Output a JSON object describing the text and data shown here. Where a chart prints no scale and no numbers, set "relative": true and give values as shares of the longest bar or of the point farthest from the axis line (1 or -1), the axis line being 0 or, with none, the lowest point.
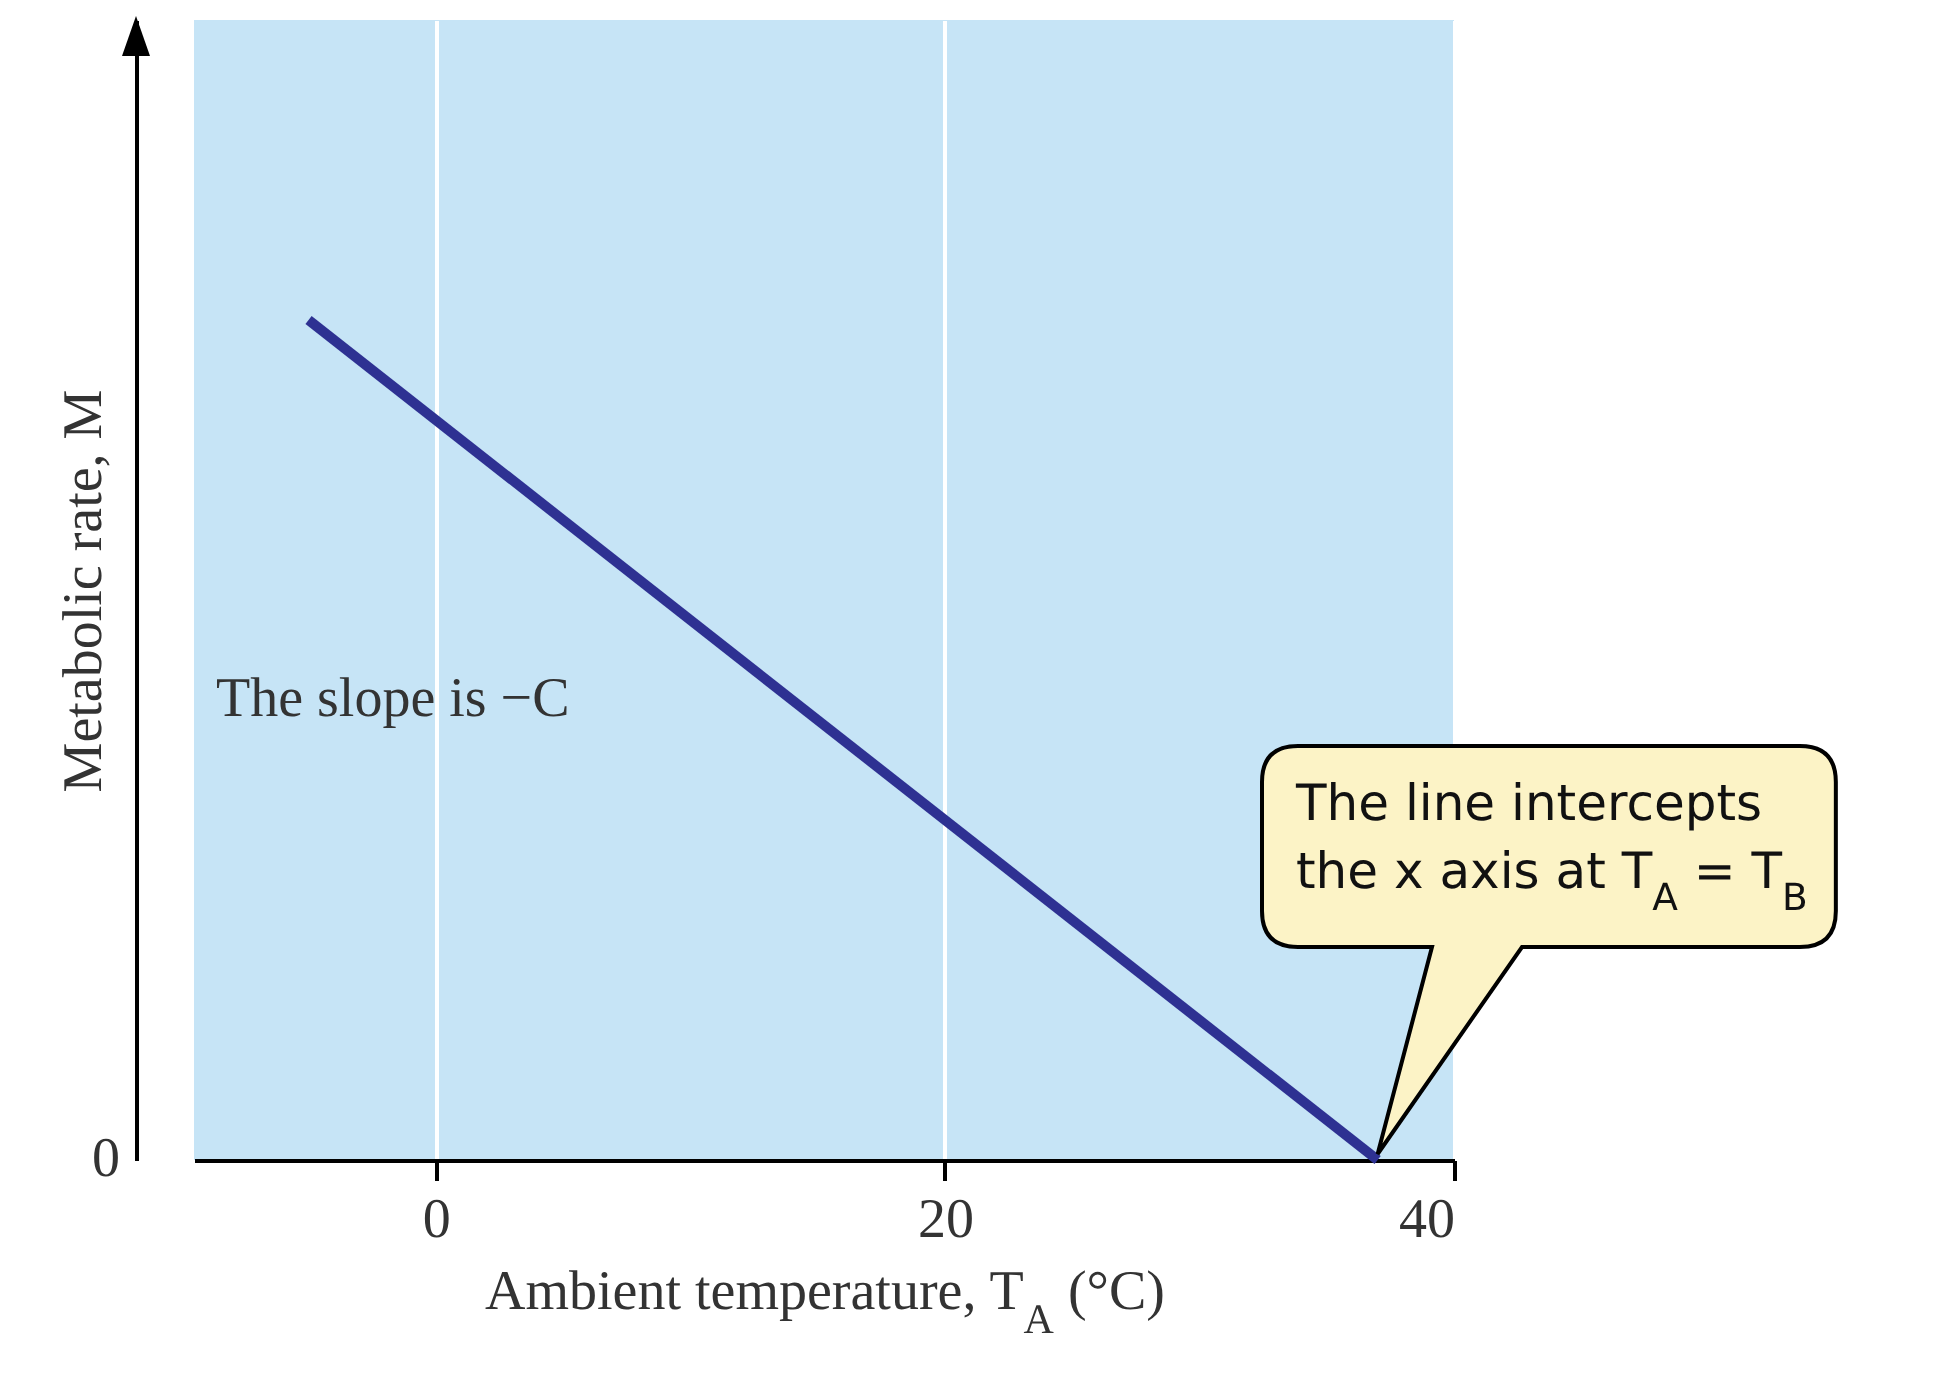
{
  "chart_data": {
    "type": "line",
    "relative": true,
    "xlabel": "Ambient temperature, T$_{A}$ (°C)",
    "ylabel": "Metabolic rate, M",
    "x": [
      -5,
      37
    ],
    "xlim": [
      -9.5,
      40
    ],
    "xticks": [
      0,
      20,
      40
    ],
    "series": [
      {
        "color": "#2e3192",
        "values": [
          1,
          0
        ]
      }
    ],
    "grid": "x",
    "marker": "none",
    "line_style": "solid",
    "annotations": [
      "0",
      "The slope is −C",
      "The line intercepts\nthe x axis at T$_{A}$ = T$_{B}$"
    ]
  }
}
